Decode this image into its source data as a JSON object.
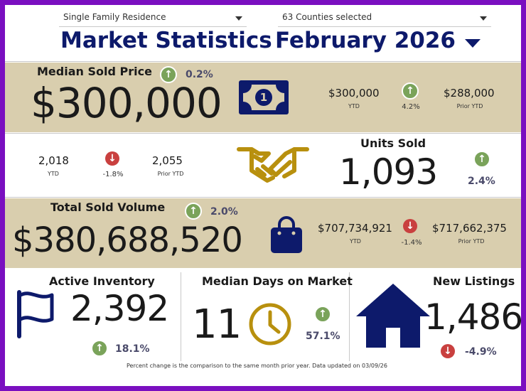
{
  "filters": {
    "property_type": "Single Family Residence",
    "counties": "63 Counties selected"
  },
  "header": {
    "title": "Market Statistics",
    "period": "February 2026"
  },
  "median_sold_price": {
    "label": "Median Sold Price",
    "value": "$300,000",
    "change": "0.2%",
    "ytd_value": "$300,000",
    "ytd_label": "YTD",
    "ytd_change": "4.2%",
    "prior_value": "$288,000",
    "prior_label": "Prior YTD"
  },
  "units_sold": {
    "label": "Units Sold",
    "value": "1,093",
    "change": "2.4%",
    "ytd_value": "2,018",
    "ytd_label": "YTD",
    "ytd_change": "-1.8%",
    "prior_value": "2,055",
    "prior_label": "Prior YTD"
  },
  "total_sold_volume": {
    "label": "Total Sold Volume",
    "value": "$380,688,520",
    "change": "2.0%",
    "ytd_value": "$707,734,921",
    "ytd_label": "YTD",
    "ytd_change": "-1.4%",
    "prior_value": "$717,662,375",
    "prior_label": "Prior YTD"
  },
  "active_inventory": {
    "label": "Active Inventory",
    "value": "2,392",
    "change": "18.1%"
  },
  "median_days": {
    "label": "Median Days on Market",
    "value": "11",
    "change": "57.1%"
  },
  "new_listings": {
    "label": "New Listings",
    "value": "1,486",
    "change": "-4.9%"
  },
  "footer": {
    "note": "Percent change is the comparison to the same month prior year. Data updated on 03/09/26"
  },
  "colors": {
    "border": "#7a0fc0",
    "navy": "#0d1a6b",
    "tan": "#d9ceae",
    "gold": "#b8900e",
    "up": "#7aa35a",
    "down": "#c9403f"
  },
  "icons": {
    "up_arrow": "↑",
    "down_arrow": "↓"
  }
}
